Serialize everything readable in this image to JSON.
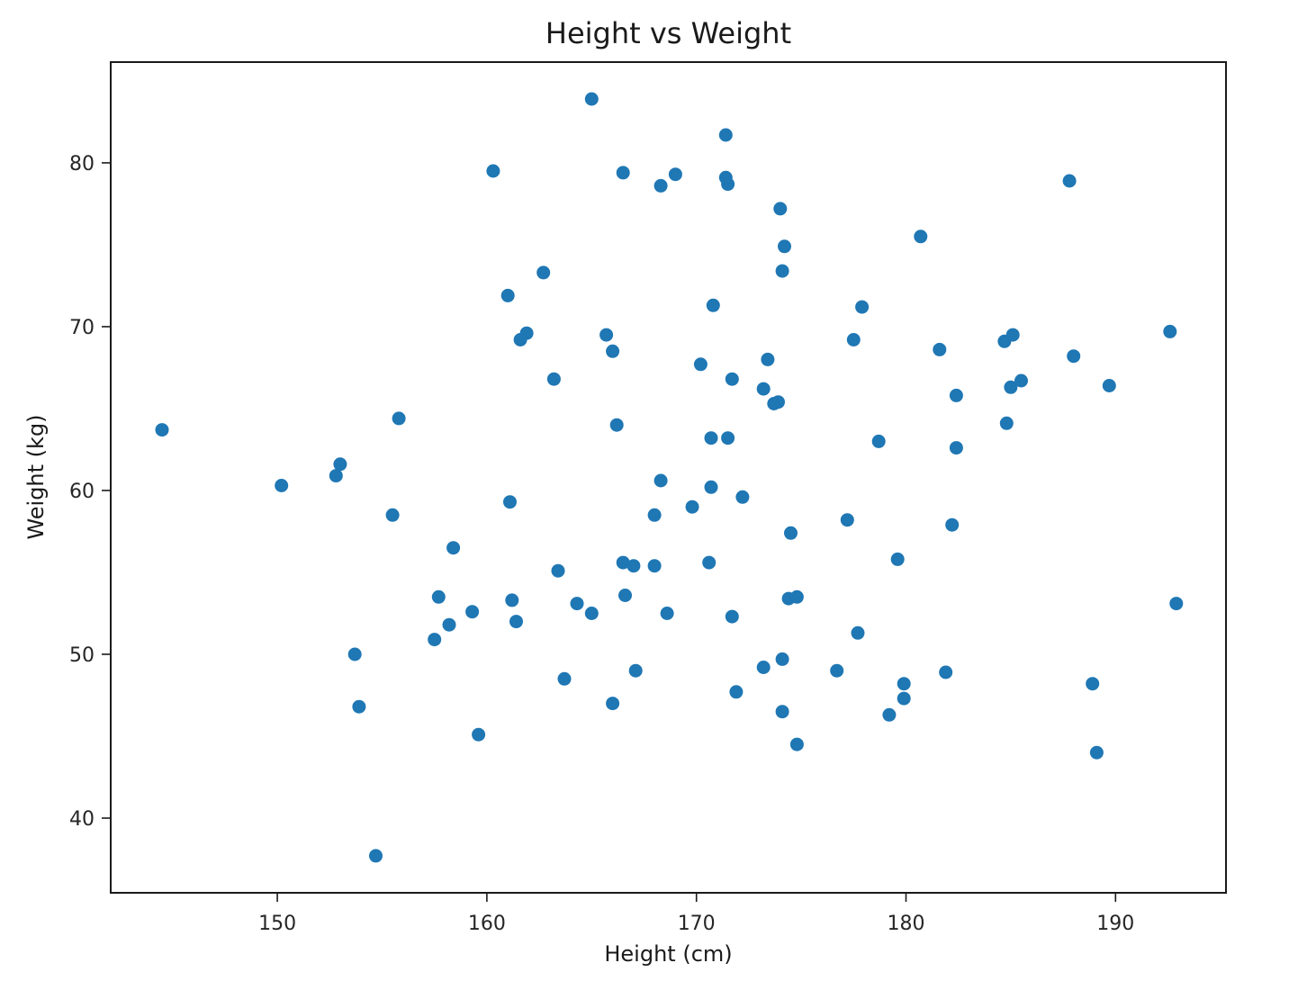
{
  "chart_data": {
    "type": "scatter",
    "title": "Height vs Weight",
    "xlabel": "Height (cm)",
    "ylabel": "Weight (kg)",
    "xlim": [
      142.05,
      195.27
    ],
    "ylim": [
      35.44,
      86.15
    ],
    "xticks": [
      150,
      160,
      170,
      180,
      190
    ],
    "yticks": [
      40,
      50,
      60,
      70,
      80
    ],
    "xtick_labels": [
      "150",
      "160",
      "170",
      "180",
      "190"
    ],
    "ytick_labels": [
      "40",
      "50",
      "60",
      "70",
      "80"
    ],
    "grid": false,
    "legend": null,
    "marker_color": "#1f77b4",
    "series": [
      {
        "name": "data",
        "points": [
          [
            144.5,
            63.7
          ],
          [
            150.2,
            60.3
          ],
          [
            152.8,
            60.9
          ],
          [
            153.0,
            61.6
          ],
          [
            155.8,
            64.4
          ],
          [
            155.5,
            58.5
          ],
          [
            153.7,
            50.0
          ],
          [
            153.9,
            46.8
          ],
          [
            154.7,
            37.7
          ],
          [
            158.4,
            56.5
          ],
          [
            157.7,
            53.5
          ],
          [
            158.2,
            51.8
          ],
          [
            157.5,
            50.9
          ],
          [
            159.3,
            52.6
          ],
          [
            159.6,
            45.1
          ],
          [
            160.3,
            79.5
          ],
          [
            161.0,
            71.9
          ],
          [
            161.9,
            69.6
          ],
          [
            161.6,
            69.2
          ],
          [
            162.7,
            73.3
          ],
          [
            163.2,
            66.8
          ],
          [
            161.1,
            59.3
          ],
          [
            161.2,
            53.3
          ],
          [
            161.4,
            52.0
          ],
          [
            163.4,
            55.1
          ],
          [
            163.7,
            48.5
          ],
          [
            164.3,
            53.1
          ],
          [
            165.0,
            52.5
          ],
          [
            165.0,
            83.9
          ],
          [
            166.5,
            79.4
          ],
          [
            165.7,
            69.5
          ],
          [
            166.0,
            68.5
          ],
          [
            166.2,
            64.0
          ],
          [
            166.5,
            55.6
          ],
          [
            167.0,
            55.4
          ],
          [
            166.6,
            53.6
          ],
          [
            167.1,
            49.0
          ],
          [
            166.0,
            47.0
          ],
          [
            168.3,
            78.6
          ],
          [
            169.0,
            79.3
          ],
          [
            168.0,
            58.5
          ],
          [
            168.3,
            60.6
          ],
          [
            168.0,
            55.4
          ],
          [
            168.6,
            52.5
          ],
          [
            169.8,
            59.0
          ],
          [
            170.2,
            67.7
          ],
          [
            170.8,
            71.3
          ],
          [
            170.7,
            63.2
          ],
          [
            170.7,
            60.2
          ],
          [
            170.6,
            55.6
          ],
          [
            171.4,
            81.7
          ],
          [
            171.4,
            79.1
          ],
          [
            171.5,
            78.7
          ],
          [
            171.5,
            63.2
          ],
          [
            171.7,
            66.8
          ],
          [
            172.2,
            59.6
          ],
          [
            171.7,
            52.3
          ],
          [
            171.9,
            47.7
          ],
          [
            174.0,
            77.2
          ],
          [
            174.2,
            74.9
          ],
          [
            174.1,
            73.4
          ],
          [
            173.4,
            68.0
          ],
          [
            173.2,
            66.2
          ],
          [
            173.7,
            65.3
          ],
          [
            173.9,
            65.4
          ],
          [
            174.5,
            57.4
          ],
          [
            174.4,
            53.4
          ],
          [
            174.8,
            53.5
          ],
          [
            173.2,
            49.2
          ],
          [
            174.1,
            49.7
          ],
          [
            174.1,
            46.5
          ],
          [
            174.8,
            44.5
          ],
          [
            177.9,
            71.2
          ],
          [
            177.5,
            69.2
          ],
          [
            177.2,
            58.2
          ],
          [
            177.7,
            51.3
          ],
          [
            176.7,
            49.0
          ],
          [
            178.7,
            63.0
          ],
          [
            179.6,
            55.8
          ],
          [
            179.9,
            48.2
          ],
          [
            179.9,
            47.3
          ],
          [
            179.2,
            46.3
          ],
          [
            180.7,
            75.5
          ],
          [
            181.6,
            68.6
          ],
          [
            182.4,
            65.8
          ],
          [
            182.4,
            62.6
          ],
          [
            182.2,
            57.9
          ],
          [
            181.9,
            48.9
          ],
          [
            184.7,
            69.1
          ],
          [
            185.1,
            69.5
          ],
          [
            185.0,
            66.3
          ],
          [
            185.5,
            66.7
          ],
          [
            184.8,
            64.1
          ],
          [
            187.8,
            78.9
          ],
          [
            188.0,
            68.2
          ],
          [
            189.7,
            66.4
          ],
          [
            188.9,
            48.2
          ],
          [
            189.1,
            44.0
          ],
          [
            192.6,
            69.7
          ],
          [
            192.9,
            53.1
          ]
        ]
      }
    ]
  }
}
